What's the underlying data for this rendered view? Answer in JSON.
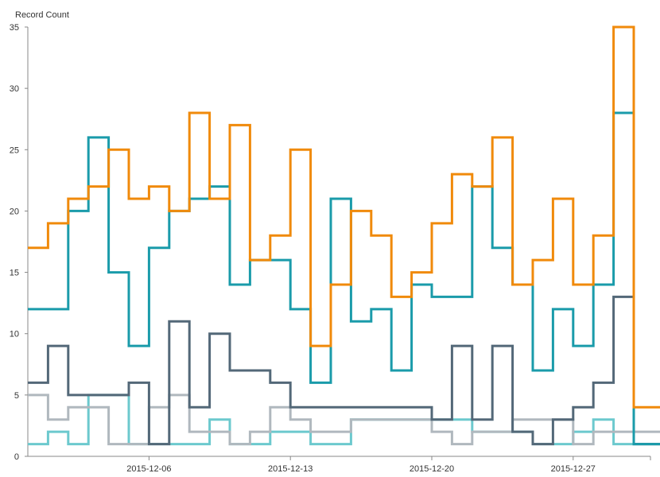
{
  "chart_data": {
    "type": "line",
    "step": true,
    "ylabel": "Record Count",
    "xlabel": "",
    "ylim": [
      0,
      35
    ],
    "yticks": [
      0,
      5,
      10,
      15,
      20,
      25,
      30,
      35
    ],
    "x": [
      "2015-11-30",
      "2015-12-01",
      "2015-12-02",
      "2015-12-03",
      "2015-12-04",
      "2015-12-05",
      "2015-12-06",
      "2015-12-07",
      "2015-12-08",
      "2015-12-09",
      "2015-12-10",
      "2015-12-11",
      "2015-12-12",
      "2015-12-13",
      "2015-12-14",
      "2015-12-15",
      "2015-12-16",
      "2015-12-17",
      "2015-12-18",
      "2015-12-19",
      "2015-12-20",
      "2015-12-21",
      "2015-12-22",
      "2015-12-23",
      "2015-12-24",
      "2015-12-25",
      "2015-12-26",
      "2015-12-27",
      "2015-12-28",
      "2015-12-29",
      "2015-12-30",
      "2015-12-31"
    ],
    "xticks": [
      "2015-12-06",
      "2015-12-13",
      "2015-12-20",
      "2015-12-27"
    ],
    "grid": false,
    "legend": "none",
    "series": [
      {
        "color": "#F08A0B",
        "values": [
          17,
          19,
          21,
          22,
          25,
          21,
          22,
          20,
          28,
          21,
          27,
          16,
          18,
          25,
          9,
          14,
          20,
          18,
          13,
          15,
          19,
          23,
          22,
          26,
          14,
          16,
          21,
          14,
          18,
          35,
          4,
          4
        ]
      },
      {
        "color": "#1A9BAA",
        "values": [
          12,
          12,
          20,
          26,
          15,
          9,
          17,
          20,
          21,
          22,
          14,
          16,
          16,
          12,
          6,
          21,
          11,
          12,
          7,
          14,
          13,
          13,
          22,
          17,
          14,
          7,
          12,
          9,
          14,
          28,
          1,
          1
        ]
      },
      {
        "color": "#536878",
        "values": [
          6,
          9,
          5,
          5,
          5,
          6,
          1,
          11,
          4,
          10,
          7,
          7,
          6,
          4,
          4,
          4,
          4,
          4,
          4,
          4,
          3,
          9,
          3,
          9,
          2,
          1,
          3,
          4,
          6,
          13,
          1,
          1
        ]
      },
      {
        "color": "#B0B8BE",
        "values": [
          5,
          3,
          4,
          4,
          1,
          1,
          4,
          5,
          2,
          2,
          1,
          2,
          4,
          3,
          2,
          2,
          3,
          3,
          3,
          3,
          2,
          1,
          2,
          2,
          3,
          3,
          3,
          1,
          2,
          2,
          2,
          2
        ]
      },
      {
        "color": "#6CC9CE",
        "values": [
          1,
          2,
          1,
          5,
          5,
          1,
          1,
          1,
          1,
          3,
          1,
          1,
          2,
          2,
          1,
          1,
          3,
          3,
          3,
          3,
          3,
          3,
          2,
          2,
          2,
          1,
          1,
          2,
          3,
          1,
          1,
          1
        ]
      }
    ]
  }
}
